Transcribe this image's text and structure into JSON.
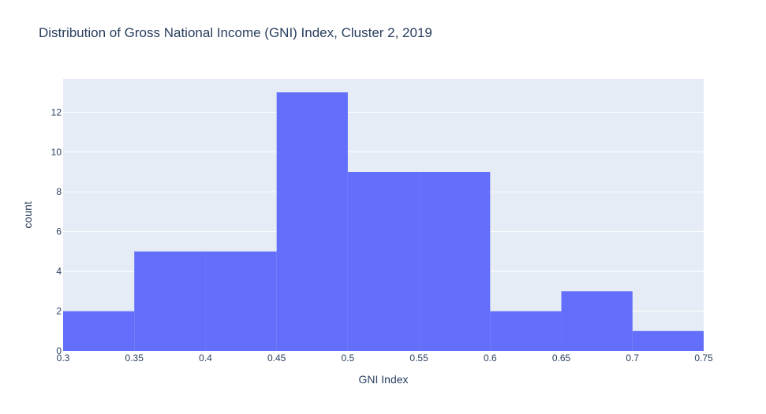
{
  "chart_data": {
    "type": "bar",
    "title": "Distribution of Gross National Income (GNI) Index, Cluster 2, 2019",
    "xlabel": "GNI Index",
    "ylabel": "count",
    "bins": [
      {
        "start": 0.3,
        "end": 0.35,
        "count": 2
      },
      {
        "start": 0.35,
        "end": 0.4,
        "count": 5
      },
      {
        "start": 0.4,
        "end": 0.45,
        "count": 5
      },
      {
        "start": 0.45,
        "end": 0.5,
        "count": 13
      },
      {
        "start": 0.5,
        "end": 0.55,
        "count": 9
      },
      {
        "start": 0.55,
        "end": 0.6,
        "count": 9
      },
      {
        "start": 0.6,
        "end": 0.65,
        "count": 2
      },
      {
        "start": 0.65,
        "end": 0.7,
        "count": 3
      },
      {
        "start": 0.7,
        "end": 0.75,
        "count": 1
      }
    ],
    "xlim": [
      0.3,
      0.75
    ],
    "ylim": [
      0,
      13.68
    ],
    "xticks": [
      0.3,
      0.35,
      0.4,
      0.45,
      0.5,
      0.55,
      0.6,
      0.65,
      0.7,
      0.75
    ],
    "xtick_labels": [
      "0.3",
      "0.35",
      "0.4",
      "0.45",
      "0.5",
      "0.55",
      "0.6",
      "0.65",
      "0.7",
      "0.75"
    ],
    "yticks": [
      0,
      2,
      4,
      6,
      8,
      10,
      12
    ],
    "ytick_labels": [
      "0",
      "2",
      "4",
      "6",
      "8",
      "10",
      "12"
    ],
    "grid": true,
    "colors": {
      "bar": "#636efa",
      "plot_background": "#e5ecf6",
      "grid": "#ffffff",
      "text": "#2a3f5f"
    }
  }
}
